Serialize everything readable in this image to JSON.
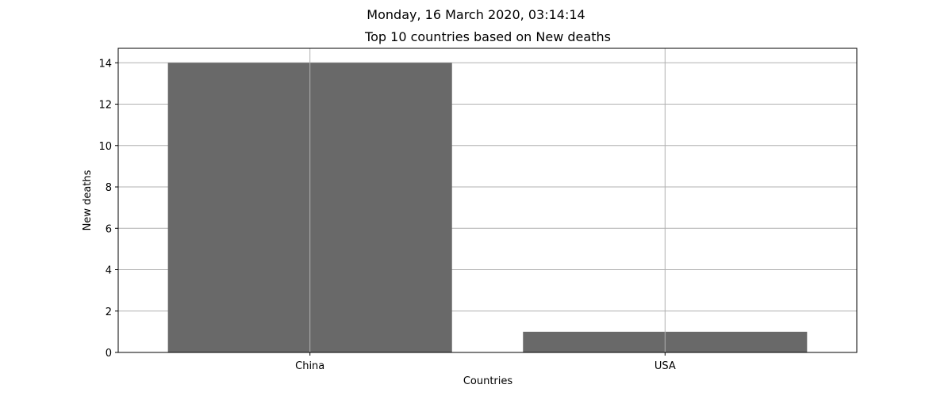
{
  "suptitle": "Monday, 16 March 2020, 03:14:14",
  "chart_data": {
    "type": "bar",
    "title": "Top 10 countries based on New deaths",
    "xlabel": "Countries",
    "ylabel": "New deaths",
    "categories": [
      "China",
      "USA"
    ],
    "values": [
      14,
      1
    ],
    "ylim": [
      0,
      14.7
    ],
    "yticks": [
      0,
      2,
      4,
      6,
      8,
      10,
      12,
      14
    ],
    "grid": true,
    "bar_color": "#696969"
  }
}
